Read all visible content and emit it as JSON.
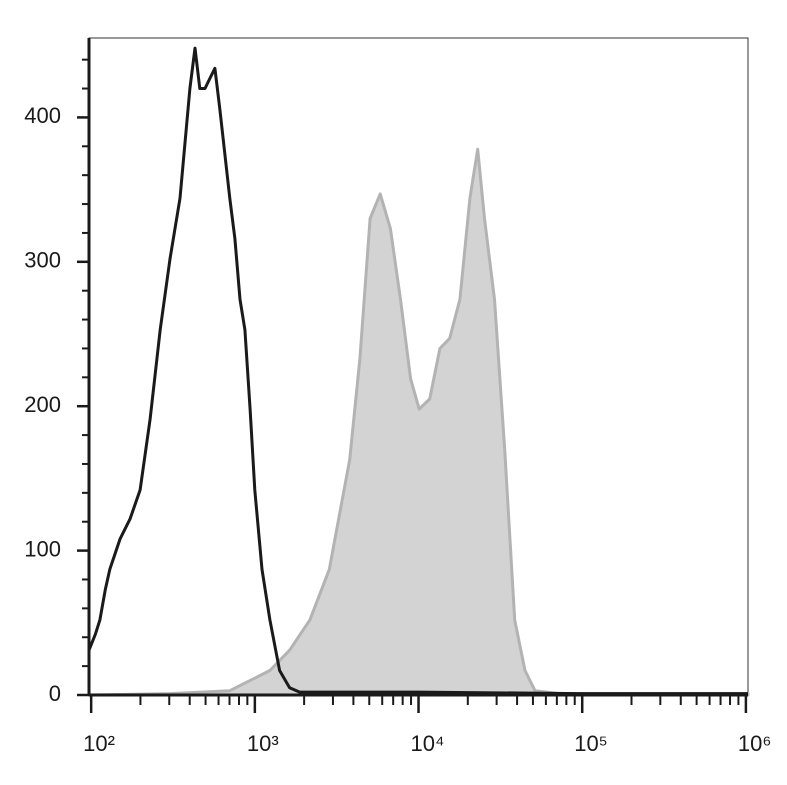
{
  "chart_data": {
    "type": "histogram-overlay",
    "xscale": "log",
    "xlim": [
      97,
      1030000
    ],
    "ylim": [
      0,
      455
    ],
    "xticks": [
      {
        "value": 100,
        "label": "10²"
      },
      {
        "value": 1000,
        "label": "10³"
      },
      {
        "value": 10000,
        "label": "10⁴"
      },
      {
        "value": 100000,
        "label": "10⁵"
      },
      {
        "value": 1000000,
        "label": "10⁶"
      }
    ],
    "yticks": [
      0,
      100,
      200,
      300,
      400
    ],
    "series": [
      {
        "color": "#b3b3b3",
        "fill": "#d3d3d3",
        "filled": true,
        "x": [
          97,
          303,
          703,
          1235,
          1631,
          2168,
          2850,
          3800,
          4385,
          5060,
          5830,
          6730,
          7760,
          8950,
          10100,
          11700,
          13500,
          15500,
          17900,
          20600,
          23000,
          25300,
          29100,
          33600,
          38700,
          44700,
          51500,
          72300,
          1030000
        ],
        "values": [
          0,
          1,
          3,
          17,
          31,
          52,
          87,
          163,
          233,
          330,
          347,
          323,
          274,
          219,
          198,
          205,
          240,
          247,
          274,
          344,
          378,
          330,
          274,
          170,
          52,
          17,
          3,
          1,
          1
        ]
      },
      {
        "color": "#1a1a1a",
        "filled": false,
        "x": [
          97,
          106,
          113,
          122,
          130,
          150,
          173,
          199,
          229,
          264,
          303,
          349,
          401,
          431,
          461,
          496,
          531,
          570,
          611,
          703,
          755,
          811,
          870,
          935,
          1000,
          1106,
          1235,
          1417,
          1631,
          1880,
          3800,
          10100,
          95600,
          1030000
        ],
        "values": [
          31,
          42,
          52,
          73,
          87,
          108,
          122,
          142,
          191,
          253,
          302,
          344,
          420,
          448,
          420,
          420,
          427,
          434,
          406,
          344,
          316,
          274,
          253,
          198,
          142,
          87,
          52,
          17,
          5,
          2,
          2,
          2,
          1,
          1
        ]
      }
    ]
  }
}
